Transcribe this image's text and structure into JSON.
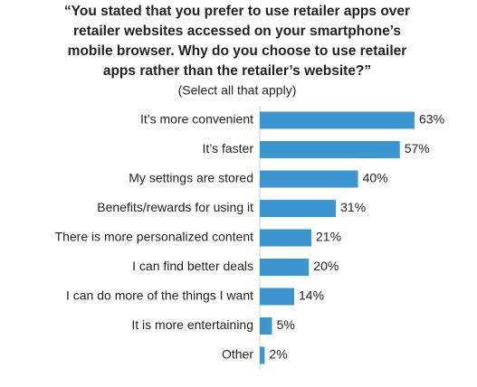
{
  "chart_data": {
    "type": "bar",
    "orientation": "horizontal",
    "title": [
      "“You stated that you prefer to use retailer apps over",
      "retailer websites accessed on your smartphone’s",
      "mobile browser. Why do you choose to use retailer",
      "apps rather than the retailer’s website?”"
    ],
    "subtitle": "(Select all that apply)",
    "categories": [
      "It’s more convenient",
      "It’s faster",
      "My settings are stored",
      "Benefits/rewards for using it",
      "There is more personalized content",
      "I can find better deals",
      "I can do more of the things I want",
      "It is more entertaining",
      "Other"
    ],
    "values": [
      63,
      57,
      40,
      31,
      21,
      20,
      14,
      5,
      2
    ],
    "value_labels": [
      "63%",
      "57%",
      "40%",
      "31%",
      "21%",
      "20%",
      "14%",
      "5%",
      "2%"
    ],
    "color": "#3b96d1",
    "xlim": [
      0,
      70
    ]
  }
}
